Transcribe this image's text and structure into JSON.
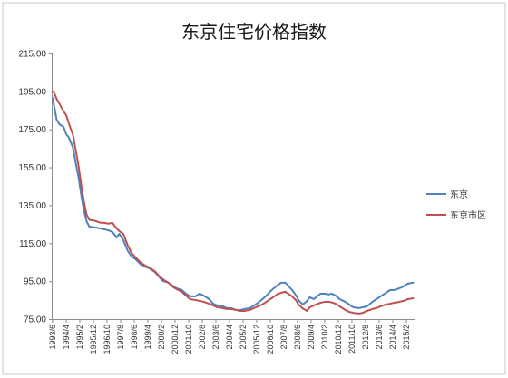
{
  "chart_data": {
    "type": "line",
    "title": "东京住宅价格指数",
    "xlim": [
      "1993/6",
      "2015/7"
    ],
    "ylim": [
      75,
      215
    ],
    "y_ticks": [
      "75.00",
      "95.00",
      "115.00",
      "135.00",
      "155.00",
      "175.00",
      "195.00",
      "215.00"
    ],
    "x_ticks": [
      "1993/6",
      "1994/4",
      "1995/2",
      "1995/12",
      "1996/10",
      "1997/8",
      "1998/6",
      "1999/4",
      "2000/2",
      "2000/12",
      "2001/10",
      "2002/8",
      "2003/6",
      "2004/4",
      "2005/2",
      "2005/12",
      "2006/10",
      "2007/8",
      "2008/6",
      "2009/4",
      "2010/2",
      "2010/12",
      "2011/10",
      "2012/8",
      "2013/6",
      "2014/4",
      "2015/2"
    ],
    "grid": false,
    "legend": "right",
    "x": [
      "1993/6",
      "1993/7",
      "1993/9",
      "1993/11",
      "1994/2",
      "1994/4",
      "1994/6",
      "1994/9",
      "1994/11",
      "1995/1",
      "1995/3",
      "1995/5",
      "1995/7",
      "1995/9",
      "1996/1",
      "1996/5",
      "1996/8",
      "1996/11",
      "1997/2",
      "1997/5",
      "1997/7",
      "1997/10",
      "1998/1",
      "1998/4",
      "1998/7",
      "1998/11",
      "1999/2",
      "1999/5",
      "1999/9",
      "1999/12",
      "2000/3",
      "2000/7",
      "2000/10",
      "2001/1",
      "2001/5",
      "2001/8",
      "2001/11",
      "2002/3",
      "2002/6",
      "2002/9",
      "2003/1",
      "2003/4",
      "2003/7",
      "2003/11",
      "2004/2",
      "2004/5",
      "2004/9",
      "2004/12",
      "2005/3",
      "2005/7",
      "2005/10",
      "2006/1",
      "2006/5",
      "2006/8",
      "2006/11",
      "2007/3",
      "2007/6",
      "2007/9",
      "2007/11",
      "2008/2",
      "2008/5",
      "2008/7",
      "2008/10",
      "2009/1",
      "2009/3",
      "2009/6",
      "2009/9",
      "2009/11",
      "2010/2",
      "2010/5",
      "2010/7",
      "2010/10",
      "2011/1",
      "2011/5",
      "2011/8",
      "2011/11",
      "2012/3",
      "2012/6",
      "2012/9",
      "2013/1",
      "2013/4",
      "2013/7",
      "2013/11",
      "2014/2",
      "2014/5",
      "2014/9",
      "2014/12",
      "2015/3",
      "2015/7"
    ],
    "series": [
      {
        "name": "东京",
        "color": "#4f81bd",
        "values": [
          191.6,
          188.0,
          180.0,
          177.7,
          176.3,
          172.5,
          170.6,
          165.3,
          157.2,
          150.0,
          140.5,
          132.3,
          126.6,
          123.7,
          123.3,
          122.8,
          122.3,
          121.8,
          120.9,
          118.0,
          119.9,
          116.6,
          111.3,
          108.0,
          106.5,
          103.7,
          102.7,
          101.8,
          99.9,
          97.5,
          95.1,
          94.2,
          92.7,
          91.3,
          90.3,
          88.4,
          87.0,
          87.0,
          88.4,
          87.4,
          85.5,
          83.1,
          82.2,
          81.7,
          80.8,
          80.8,
          79.8,
          79.8,
          80.3,
          80.8,
          82.2,
          83.6,
          86.0,
          88.0,
          90.3,
          92.7,
          94.2,
          94.2,
          92.7,
          90.3,
          87.4,
          84.6,
          82.7,
          84.6,
          86.5,
          85.5,
          87.4,
          88.4,
          88.4,
          88.0,
          88.4,
          87.4,
          85.5,
          84.1,
          82.7,
          81.2,
          80.8,
          81.2,
          81.7,
          84.1,
          85.5,
          87.0,
          88.9,
          90.3,
          90.3,
          91.3,
          92.2,
          93.7,
          94.2
        ]
      },
      {
        "name": "东京市区",
        "color": "#c0504d",
        "values": [
          195.0,
          194.5,
          191.0,
          188.5,
          184.5,
          182.5,
          178.0,
          172.0,
          164.0,
          156.0,
          146.0,
          137.0,
          130.0,
          127.3,
          126.8,
          125.8,
          125.7,
          125.3,
          125.7,
          122.8,
          121.4,
          119.9,
          114.2,
          109.9,
          107.5,
          104.6,
          103.2,
          102.2,
          100.3,
          97.9,
          96.0,
          94.2,
          92.2,
          90.8,
          89.4,
          87.4,
          85.5,
          85.0,
          84.6,
          84.1,
          83.1,
          82.2,
          81.2,
          80.8,
          80.3,
          80.3,
          79.8,
          79.3,
          79.3,
          79.8,
          80.8,
          81.7,
          83.1,
          84.6,
          86.0,
          88.0,
          88.9,
          89.4,
          88.5,
          87.0,
          84.8,
          82.5,
          80.5,
          79.3,
          81.2,
          82.2,
          83.1,
          83.6,
          84.1,
          84.1,
          83.8,
          83.1,
          81.7,
          79.8,
          78.8,
          78.3,
          77.9,
          78.3,
          79.3,
          80.3,
          80.8,
          81.7,
          82.7,
          83.1,
          83.6,
          84.1,
          84.6,
          85.5,
          86.0
        ]
      }
    ]
  }
}
